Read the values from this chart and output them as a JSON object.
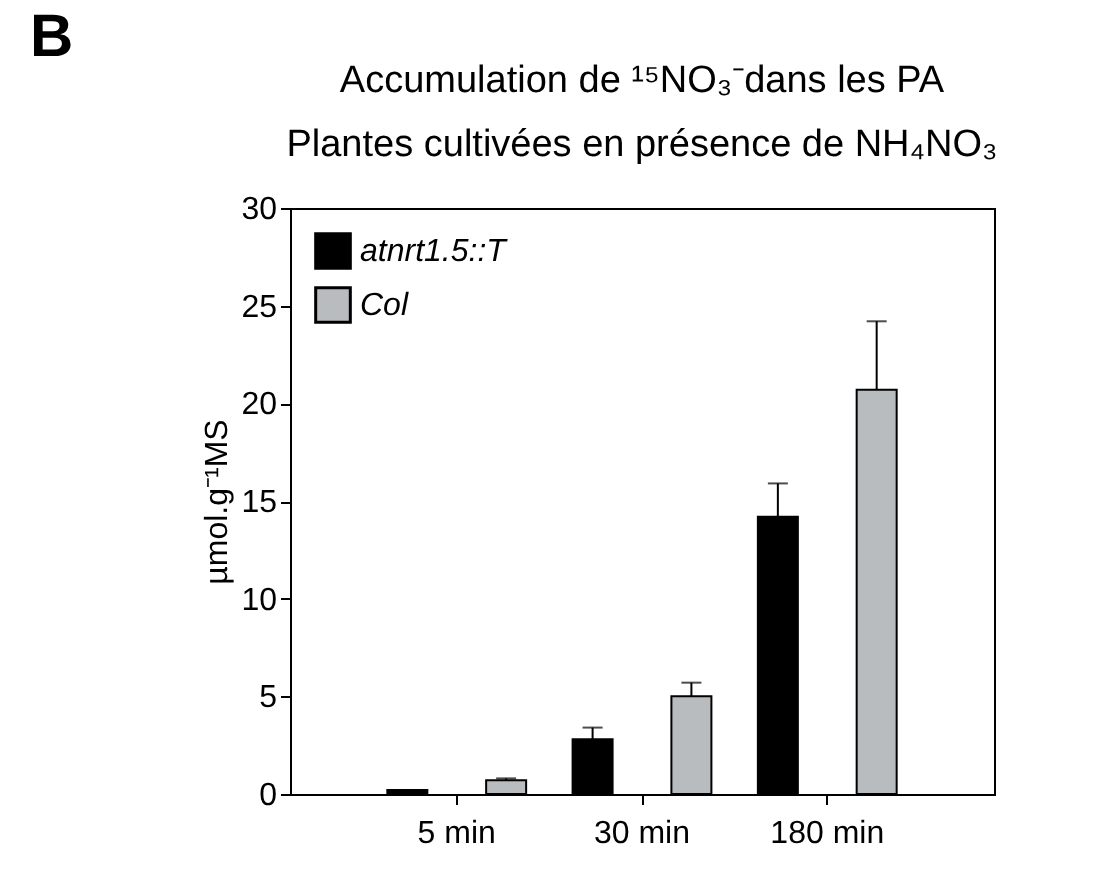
{
  "chart_data": {
    "type": "bar",
    "title": "Accumulation de ¹⁵NO₃⁻dans les PA",
    "subtitle": "Plantes cultivées en présence de NH₄NO₃",
    "ylabel": "µmol.g⁻¹MS",
    "annotations": [
      "B"
    ],
    "categories": [
      "5 min",
      "30 min",
      "180 min"
    ],
    "series": [
      {
        "name": "atnrt1.5::T",
        "color": "#000000",
        "values": [
          0.2,
          2.8,
          14.2
        ],
        "errors": [
          null,
          [
            2.8,
            3.4
          ],
          [
            14.2,
            15.9
          ]
        ]
      },
      {
        "name": "Col",
        "color": "#b8bcbf",
        "values": [
          0.7,
          5.0,
          20.7
        ],
        "errors": [
          [
            0.7,
            0.8
          ],
          [
            5.0,
            5.7
          ],
          [
            20.7,
            24.2
          ]
        ]
      }
    ],
    "ylim": [
      0,
      30
    ],
    "yticks": [
      0,
      5,
      10,
      15,
      20,
      25,
      30
    ],
    "grid": false,
    "legend": "top left"
  }
}
